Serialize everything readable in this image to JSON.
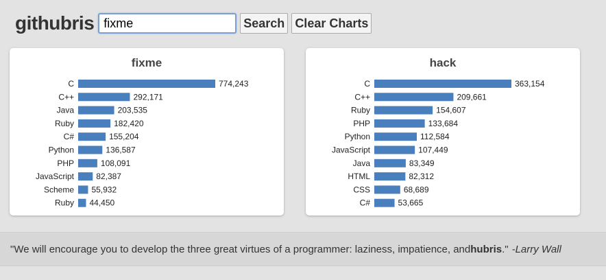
{
  "header": {
    "logo": "githubris",
    "search_value": "fixme",
    "search_label": "Search",
    "clear_label": "Clear Charts"
  },
  "colors": {
    "bar": "#4a7fbd"
  },
  "chart_data": [
    {
      "type": "bar",
      "title": "fixme",
      "categories": [
        "C",
        "C++",
        "Java",
        "Ruby",
        "C#",
        "Python",
        "PHP",
        "JavaScript",
        "Scheme",
        "Ruby"
      ],
      "values": [
        774243,
        292171,
        203535,
        182420,
        155204,
        136587,
        108091,
        82387,
        55932,
        44450
      ],
      "value_labels": [
        "774,243",
        "292,171",
        "203,535",
        "182,420",
        "155,204",
        "136,587",
        "108,091",
        "82,387",
        "55,932",
        "44,450"
      ]
    },
    {
      "type": "bar",
      "title": "hack",
      "categories": [
        "C",
        "C++",
        "Ruby",
        "PHP",
        "Python",
        "JavaScript",
        "Java",
        "HTML",
        "CSS",
        "C#"
      ],
      "values": [
        363154,
        209661,
        154607,
        133684,
        112584,
        107449,
        83349,
        82312,
        68689,
        53665
      ],
      "value_labels": [
        "363,154",
        "209,661",
        "154,607",
        "133,684",
        "112,584",
        "107,449",
        "83,349",
        "82,312",
        "68,689",
        "53,665"
      ]
    }
  ],
  "quote": {
    "text_before": "\"We will encourage you to develop the three great virtues of a programmer: laziness, impatience, and ",
    "emphasis": "hubris",
    "text_after": ".\"",
    "author": "-Larry Wall"
  }
}
